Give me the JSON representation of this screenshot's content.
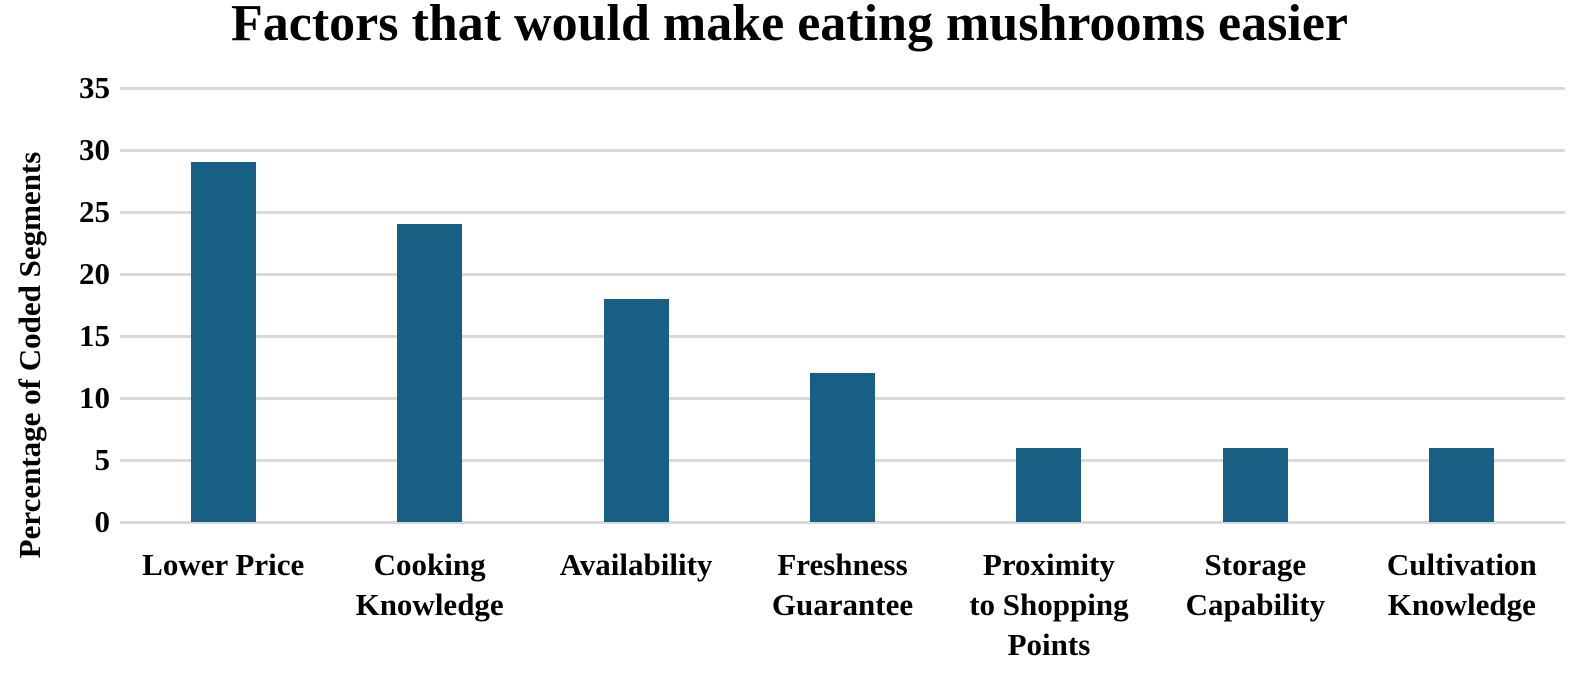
{
  "chart_data": {
    "type": "bar",
    "title": "Factors that would make eating mushrooms easier",
    "xlabel": "",
    "ylabel": "Percentage of Coded Segments",
    "categories": [
      "Lower Price",
      "Cooking Knowledge",
      "Availability",
      "Freshness Guarantee",
      "Proximity to Shopping Points",
      "Storage Capability",
      "Cultivation Knowledge"
    ],
    "category_lines": [
      [
        "Lower Price"
      ],
      [
        "Cooking",
        "Knowledge"
      ],
      [
        "Availability"
      ],
      [
        "Freshness",
        "Guarantee"
      ],
      [
        "Proximity",
        "to Shopping",
        "Points"
      ],
      [
        "Storage",
        "Capability"
      ],
      [
        "Cultivation",
        "Knowledge"
      ]
    ],
    "values": [
      29,
      24,
      18,
      12,
      6,
      6,
      6
    ],
    "ylim": [
      0,
      35
    ],
    "yticks": [
      0,
      5,
      10,
      15,
      20,
      25,
      30,
      35
    ],
    "grid": true,
    "legend": "none",
    "bar_color": "#186083",
    "grid_color": "#d9d9d9"
  }
}
